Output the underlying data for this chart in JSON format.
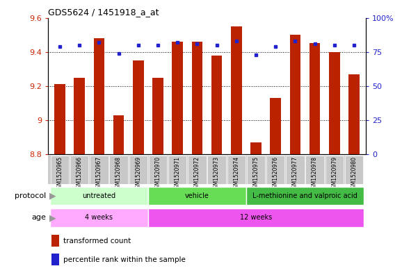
{
  "title": "GDS5624 / 1451918_a_at",
  "samples": [
    "GSM1520965",
    "GSM1520966",
    "GSM1520967",
    "GSM1520968",
    "GSM1520969",
    "GSM1520970",
    "GSM1520971",
    "GSM1520972",
    "GSM1520973",
    "GSM1520974",
    "GSM1520975",
    "GSM1520976",
    "GSM1520977",
    "GSM1520978",
    "GSM1520979",
    "GSM1520980"
  ],
  "transformed_count": [
    9.21,
    9.25,
    9.48,
    9.03,
    9.35,
    9.25,
    9.46,
    9.46,
    9.38,
    9.55,
    8.87,
    9.13,
    9.5,
    9.45,
    9.4,
    9.27
  ],
  "percentile_rank": [
    79,
    80,
    82,
    74,
    80,
    80,
    82,
    81,
    80,
    83,
    73,
    79,
    83,
    81,
    80,
    80
  ],
  "ymin": 8.8,
  "ymax": 9.6,
  "yticks_left": [
    8.8,
    9.0,
    9.2,
    9.4,
    9.6
  ],
  "ytick_labels_left": [
    "8.8",
    "9",
    "9.2",
    "9.4",
    "9.6"
  ],
  "right_yticks": [
    0,
    25,
    50,
    75,
    100
  ],
  "right_ytick_labels": [
    "0",
    "25",
    "50",
    "75",
    "100%"
  ],
  "bar_color": "#bb2200",
  "dot_color": "#2222cc",
  "bar_width": 0.55,
  "protocol_groups": [
    {
      "label": "untreated",
      "start": 0,
      "end": 4,
      "color": "#ccffcc"
    },
    {
      "label": "vehicle",
      "start": 5,
      "end": 9,
      "color": "#66dd66"
    },
    {
      "label": "L-methionine and valproic acid",
      "start": 10,
      "end": 15,
      "color": "#44bb44"
    }
  ],
  "age_groups": [
    {
      "label": "4 weeks",
      "start": 0,
      "end": 4,
      "color": "#ffaaff"
    },
    {
      "label": "12 weeks",
      "start": 5,
      "end": 15,
      "color": "#ee66ee"
    }
  ],
  "bar_color_hex": "#bb2200",
  "dot_color_hex": "#2222cc",
  "left_tick_color": "#cc2200",
  "right_tick_color": "#2222cc",
  "plot_bg": "#ffffff",
  "tick_label_bg": "#cccccc",
  "protocol_arrow_color": "#888888",
  "age_arrow_color": "#888888"
}
